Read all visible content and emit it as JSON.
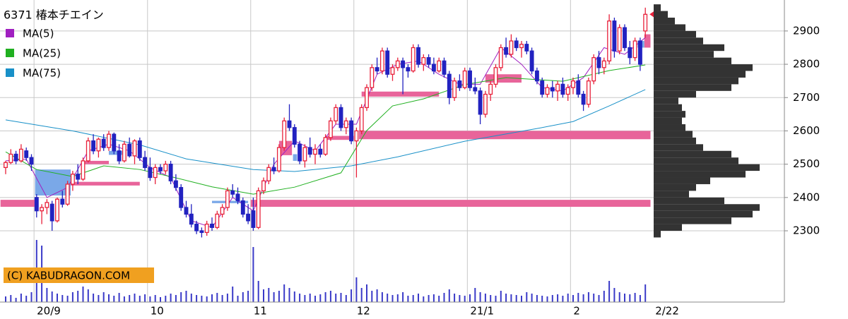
{
  "chart_data": {
    "type": "candlestick",
    "title": "6371 椿本チエイン",
    "ylim": [
      2086,
      2993
    ],
    "yticks": [
      2300,
      2400,
      2500,
      2600,
      2700,
      2800,
      2900
    ],
    "grid": true,
    "up_color": "#e8203a",
    "down_color": "#2222c0",
    "categories": [
      null,
      null,
      null,
      null,
      null,
      null,
      "20/9",
      null,
      null,
      null,
      null,
      null,
      null,
      null,
      null,
      null,
      null,
      null,
      null,
      null,
      null,
      null,
      null,
      null,
      null,
      null,
      null,
      null,
      "10",
      null,
      null,
      null,
      null,
      null,
      null,
      null,
      null,
      null,
      null,
      null,
      null,
      null,
      null,
      null,
      null,
      null,
      null,
      null,
      "11",
      null,
      null,
      null,
      null,
      null,
      null,
      null,
      null,
      null,
      null,
      null,
      null,
      null,
      null,
      null,
      null,
      null,
      null,
      null,
      "12",
      null,
      null,
      null,
      null,
      null,
      null,
      null,
      null,
      null,
      null,
      null,
      null,
      null,
      null,
      null,
      null,
      null,
      null,
      null,
      null,
      null,
      "21/1",
      null,
      null,
      null,
      null,
      null,
      null,
      null,
      null,
      null,
      null,
      null,
      null,
      null,
      null,
      null,
      null,
      null,
      null,
      null,
      "2",
      null,
      null,
      null,
      null,
      null,
      null,
      null,
      null,
      null,
      null,
      null,
      null,
      null,
      "2/22"
    ],
    "ohlc": [
      [
        2490,
        2510,
        2470,
        2505
      ],
      [
        2505,
        2545,
        2500,
        2530
      ],
      [
        2530,
        2540,
        2500,
        2510
      ],
      [
        2510,
        2560,
        2505,
        2545
      ],
      [
        2540,
        2550,
        2510,
        2520
      ],
      [
        2520,
        2530,
        2480,
        2500
      ],
      [
        2400,
        2410,
        2340,
        2360
      ],
      [
        2360,
        2380,
        2320,
        2370
      ],
      [
        2370,
        2395,
        2350,
        2385
      ],
      [
        2380,
        2390,
        2300,
        2330
      ],
      [
        2330,
        2400,
        2325,
        2395
      ],
      [
        2395,
        2420,
        2370,
        2380
      ],
      [
        2380,
        2450,
        2375,
        2440
      ],
      [
        2440,
        2480,
        2420,
        2470
      ],
      [
        2470,
        2500,
        2440,
        2455
      ],
      [
        2455,
        2520,
        2450,
        2510
      ],
      [
        2510,
        2580,
        2505,
        2570
      ],
      [
        2570,
        2590,
        2530,
        2540
      ],
      [
        2540,
        2580,
        2520,
        2575
      ],
      [
        2575,
        2590,
        2540,
        2550
      ],
      [
        2550,
        2600,
        2540,
        2590
      ],
      [
        2590,
        2595,
        2530,
        2540
      ],
      [
        2540,
        2560,
        2500,
        2510
      ],
      [
        2510,
        2570,
        2505,
        2560
      ],
      [
        2560,
        2580,
        2520,
        2525
      ],
      [
        2525,
        2575,
        2500,
        2570
      ],
      [
        2570,
        2580,
        2510,
        2520
      ],
      [
        2520,
        2540,
        2480,
        2490
      ],
      [
        2490,
        2520,
        2450,
        2460
      ],
      [
        2460,
        2500,
        2440,
        2490
      ],
      [
        2490,
        2500,
        2470,
        2480
      ],
      [
        2480,
        2510,
        2470,
        2500
      ],
      [
        2500,
        2510,
        2440,
        2450
      ],
      [
        2450,
        2470,
        2420,
        2430
      ],
      [
        2430,
        2440,
        2360,
        2370
      ],
      [
        2370,
        2390,
        2340,
        2350
      ],
      [
        2350,
        2380,
        2310,
        2320
      ],
      [
        2320,
        2330,
        2290,
        2300
      ],
      [
        2300,
        2310,
        2280,
        2295
      ],
      [
        2295,
        2330,
        2285,
        2320
      ],
      [
        2320,
        2340,
        2300,
        2310
      ],
      [
        2310,
        2360,
        2305,
        2350
      ],
      [
        2350,
        2380,
        2340,
        2370
      ],
      [
        2370,
        2430,
        2360,
        2420
      ],
      [
        2420,
        2440,
        2400,
        2410
      ],
      [
        2410,
        2430,
        2380,
        2390
      ],
      [
        2390,
        2400,
        2340,
        2350
      ],
      [
        2350,
        2380,
        2320,
        2330
      ],
      [
        2360,
        2400,
        2300,
        2310
      ],
      [
        2310,
        2430,
        2305,
        2420
      ],
      [
        2420,
        2460,
        2410,
        2450
      ],
      [
        2450,
        2500,
        2440,
        2490
      ],
      [
        2490,
        2520,
        2470,
        2480
      ],
      [
        2480,
        2560,
        2475,
        2550
      ],
      [
        2550,
        2640,
        2540,
        2630
      ],
      [
        2630,
        2680,
        2600,
        2610
      ],
      [
        2610,
        2620,
        2550,
        2560
      ],
      [
        2560,
        2570,
        2500,
        2510
      ],
      [
        2510,
        2560,
        2490,
        2550
      ],
      [
        2550,
        2580,
        2520,
        2530
      ],
      [
        2530,
        2560,
        2500,
        2545
      ],
      [
        2545,
        2560,
        2520,
        2530
      ],
      [
        2530,
        2590,
        2525,
        2580
      ],
      [
        2580,
        2640,
        2570,
        2630
      ],
      [
        2630,
        2680,
        2620,
        2670
      ],
      [
        2670,
        2680,
        2600,
        2610
      ],
      [
        2610,
        2640,
        2590,
        2630
      ],
      [
        2630,
        2640,
        2560,
        2570
      ],
      [
        2570,
        2610,
        2460,
        2600
      ],
      [
        2600,
        2680,
        2590,
        2670
      ],
      [
        2670,
        2740,
        2660,
        2730
      ],
      [
        2730,
        2800,
        2720,
        2790
      ],
      [
        2790,
        2820,
        2770,
        2780
      ],
      [
        2780,
        2850,
        2770,
        2840
      ],
      [
        2840,
        2850,
        2760,
        2770
      ],
      [
        2770,
        2800,
        2750,
        2790
      ],
      [
        2790,
        2820,
        2780,
        2810
      ],
      [
        2810,
        2820,
        2710,
        2790
      ],
      [
        2790,
        2800,
        2760,
        2780
      ],
      [
        2780,
        2860,
        2775,
        2850
      ],
      [
        2850,
        2860,
        2790,
        2800
      ],
      [
        2800,
        2830,
        2780,
        2820
      ],
      [
        2820,
        2830,
        2790,
        2800
      ],
      [
        2800,
        2820,
        2770,
        2780
      ],
      [
        2780,
        2820,
        2775,
        2810
      ],
      [
        2810,
        2820,
        2760,
        2770
      ],
      [
        2770,
        2780,
        2680,
        2700
      ],
      [
        2700,
        2760,
        2690,
        2750
      ],
      [
        2750,
        2770,
        2720,
        2730
      ],
      [
        2730,
        2790,
        2725,
        2780
      ],
      [
        2780,
        2790,
        2720,
        2730
      ],
      [
        2730,
        2760,
        2710,
        2720
      ],
      [
        2720,
        2730,
        2620,
        2650
      ],
      [
        2650,
        2720,
        2640,
        2710
      ],
      [
        2710,
        2750,
        2690,
        2740
      ],
      [
        2740,
        2800,
        2730,
        2790
      ],
      [
        2790,
        2860,
        2780,
        2850
      ],
      [
        2850,
        2880,
        2820,
        2830
      ],
      [
        2830,
        2890,
        2820,
        2870
      ],
      [
        2870,
        2880,
        2840,
        2850
      ],
      [
        2850,
        2870,
        2820,
        2860
      ],
      [
        2860,
        2870,
        2830,
        2840
      ],
      [
        2840,
        2850,
        2770,
        2780
      ],
      [
        2780,
        2790,
        2740,
        2750
      ],
      [
        2750,
        2760,
        2700,
        2710
      ],
      [
        2710,
        2740,
        2700,
        2730
      ],
      [
        2730,
        2750,
        2700,
        2720
      ],
      [
        2720,
        2750,
        2690,
        2740
      ],
      [
        2740,
        2760,
        2700,
        2710
      ],
      [
        2710,
        2740,
        2690,
        2730
      ],
      [
        2730,
        2760,
        2710,
        2750
      ],
      [
        2750,
        2770,
        2700,
        2710
      ],
      [
        2710,
        2720,
        2660,
        2680
      ],
      [
        2680,
        2760,
        2670,
        2750
      ],
      [
        2750,
        2830,
        2740,
        2820
      ],
      [
        2820,
        2840,
        2770,
        2790
      ],
      [
        2790,
        2820,
        2770,
        2810
      ],
      [
        2810,
        2950,
        2800,
        2930
      ],
      [
        2930,
        2940,
        2820,
        2840
      ],
      [
        2840,
        2920,
        2830,
        2910
      ],
      [
        2910,
        2920,
        2840,
        2850
      ],
      [
        2850,
        2870,
        2800,
        2820
      ],
      [
        2820,
        2880,
        2810,
        2870
      ],
      [
        2870,
        2880,
        2780,
        2800
      ],
      [
        2900,
        2970,
        2880,
        2950
      ]
    ],
    "volume": [
      8,
      10,
      6,
      12,
      9,
      14,
      88,
      80,
      20,
      15,
      12,
      10,
      9,
      14,
      16,
      22,
      18,
      12,
      10,
      14,
      11,
      9,
      13,
      8,
      10,
      12,
      9,
      11,
      8,
      10,
      7,
      9,
      12,
      10,
      14,
      16,
      12,
      10,
      9,
      8,
      11,
      13,
      10,
      12,
      22,
      9,
      14,
      16,
      78,
      30,
      18,
      20,
      14,
      16,
      25,
      20,
      15,
      12,
      10,
      12,
      9,
      11,
      14,
      16,
      12,
      13,
      10,
      18,
      35,
      20,
      25,
      16,
      18,
      14,
      12,
      10,
      11,
      14,
      9,
      10,
      12,
      8,
      10,
      11,
      9,
      13,
      18,
      12,
      10,
      9,
      11,
      20,
      14,
      12,
      10,
      9,
      16,
      12,
      11,
      10,
      9,
      14,
      12,
      10,
      9,
      8,
      10,
      11,
      9,
      12,
      10,
      13,
      11,
      14,
      12,
      10,
      16,
      30,
      20,
      14,
      12,
      11,
      13,
      10,
      25
    ],
    "volume_ylim": [
      0,
      100
    ],
    "volume_color": "#3a3ac8",
    "series": [
      {
        "name": "MA(5)",
        "color": "#a020c0",
        "x": [
          0,
          4,
          8,
          12,
          16,
          20,
          24,
          28,
          32,
          36,
          40,
          44,
          48,
          52,
          56,
          60,
          64,
          68,
          72,
          76,
          80,
          84,
          88,
          92,
          96,
          100,
          104,
          108,
          112,
          116,
          120,
          124
        ],
        "values": [
          2510,
          2515,
          2400,
          2430,
          2540,
          2560,
          2540,
          2490,
          2460,
          2330,
          2310,
          2400,
          2360,
          2500,
          2570,
          2540,
          2620,
          2620,
          2770,
          2800,
          2810,
          2770,
          2740,
          2740,
          2850,
          2800,
          2730,
          2720,
          2760,
          2850,
          2830,
          2880
        ]
      },
      {
        "name": "MA(25)",
        "color": "#20b020",
        "x": [
          0,
          6,
          13,
          19,
          26,
          33,
          40,
          48,
          56,
          65,
          70,
          75,
          81,
          89,
          97,
          108,
          117,
          124
        ],
        "values": [
          2537,
          2484,
          2463,
          2495,
          2484,
          2459,
          2432,
          2410,
          2431,
          2474,
          2601,
          2675,
          2696,
          2739,
          2760,
          2749,
          2781,
          2798
        ]
      },
      {
        "name": "MA(75)",
        "color": "#1890c8",
        "x": [
          0,
          13,
          26,
          35,
          48,
          56,
          67,
          76,
          89,
          103,
          110,
          117,
          124
        ],
        "values": [
          2633,
          2600,
          2558,
          2516,
          2484,
          2478,
          2495,
          2522,
          2569,
          2607,
          2628,
          2675,
          2724
        ]
      }
    ],
    "zones": [
      {
        "i0": -1,
        "i1": 5.7,
        "p0": 2372,
        "p1": 2393,
        "color": "#e8649a"
      },
      {
        "i0": 47.5,
        "i1": 125,
        "p0": 2372,
        "p1": 2393,
        "color": "#e8649a"
      },
      {
        "i0": 68.5,
        "i1": 125,
        "p0": 2575,
        "p1": 2600,
        "color": "#e8649a"
      },
      {
        "i0": 69,
        "i1": 84,
        "p0": 2703,
        "p1": 2718,
        "color": "#e8649a"
      },
      {
        "i0": 93,
        "i1": 100,
        "p0": 2745,
        "p1": 2770,
        "color": "#e8649a"
      },
      {
        "i0": 12.6,
        "i1": 26,
        "p0": 2436,
        "p1": 2447,
        "color": "#e8649a"
      },
      {
        "i0": 15,
        "i1": 20,
        "p0": 2500,
        "p1": 2510,
        "color": "#e8649a"
      },
      {
        "i0": 53,
        "i1": 55.5,
        "p0": 2527,
        "p1": 2570,
        "color": "#e8649a"
      },
      {
        "i0": 62,
        "i1": 67.5,
        "p0": 2573,
        "p1": 2585,
        "color": "#e8649a"
      },
      {
        "i0": 123.8,
        "i1": 125,
        "p0": 2850,
        "p1": 2890,
        "color": "#e8649a"
      },
      {
        "i0": 5.7,
        "i1": 12.6,
        "p0": 2406,
        "p1": 2484,
        "color": "#7aa8e8"
      },
      {
        "i0": 20,
        "i1": 23,
        "p0": 2528,
        "p1": 2540,
        "color": "#7aa8e8"
      },
      {
        "i0": 40,
        "i1": 47,
        "p0": 2383,
        "p1": 2390,
        "color": "#7aa8e8"
      },
      {
        "i0": 122.5,
        "i1": 123.8,
        "p0": 2850,
        "p1": 2870,
        "color": "#7aa8e8"
      },
      {
        "i0": 55.7,
        "i1": 56.5,
        "p0": 2510,
        "p1": 2530,
        "color": "#7aa8e8"
      }
    ],
    "volume_profile": {
      "color": "#333333",
      "bins": [
        2280,
        2300,
        2320,
        2340,
        2360,
        2380,
        2400,
        2420,
        2440,
        2460,
        2480,
        2500,
        2520,
        2540,
        2560,
        2580,
        2600,
        2620,
        2640,
        2660,
        2680,
        2700,
        2720,
        2740,
        2760,
        2780,
        2800,
        2820,
        2840,
        2860,
        2880,
        2900,
        2920,
        2940,
        2960,
        2980
      ],
      "values": [
        10,
        40,
        110,
        140,
        150,
        100,
        50,
        60,
        80,
        130,
        150,
        120,
        110,
        70,
        60,
        55,
        45,
        40,
        45,
        40,
        35,
        60,
        110,
        120,
        130,
        140,
        110,
        85,
        100,
        70,
        60,
        45,
        30,
        20,
        10
      ]
    },
    "watermark": "(C) KABUDRAGON.COM"
  }
}
